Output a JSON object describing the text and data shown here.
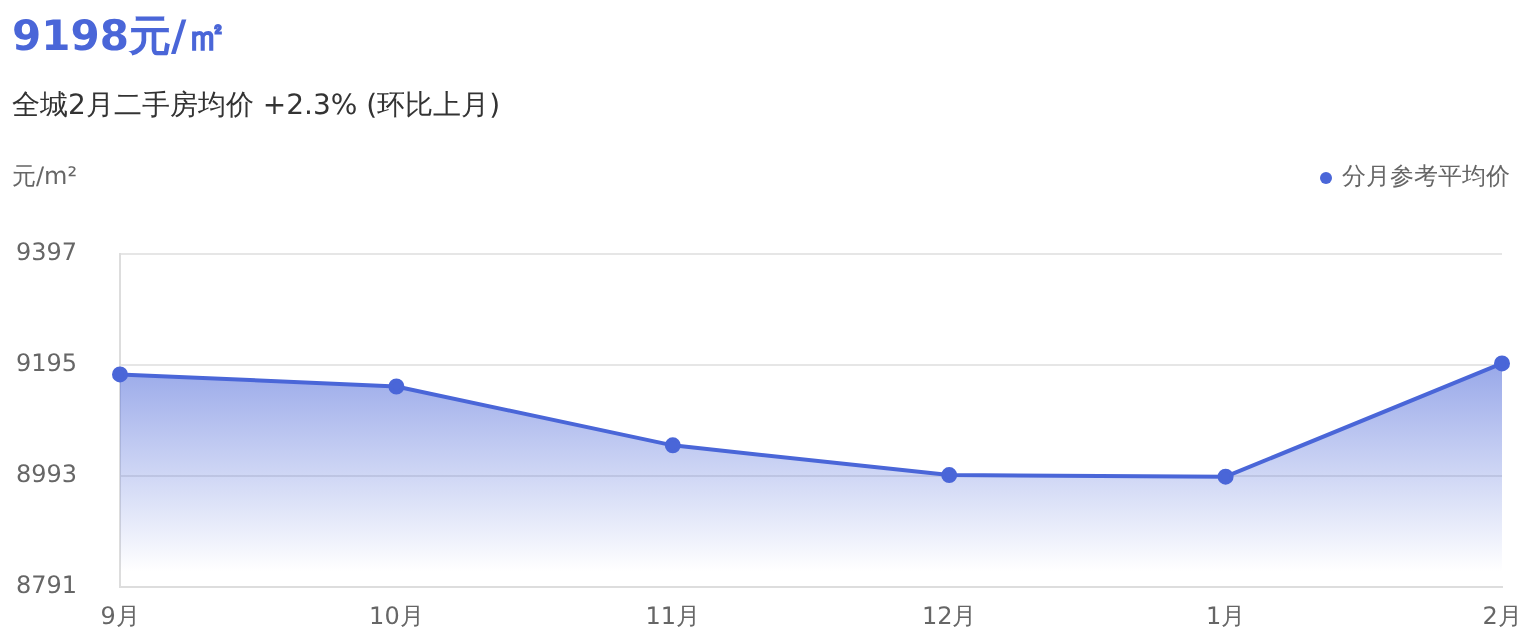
{
  "chart_data": {
    "type": "area",
    "title": "9198元/㎡",
    "subtitle": "全城2月二手房均价 +2.3% (环比上月)",
    "ylabel": "元/m²",
    "categories": [
      "9月",
      "10月",
      "11月",
      "12月",
      "1月",
      "2月"
    ],
    "series": [
      {
        "name": "分月参考平均价",
        "color": "#4a66d8",
        "values": [
          9178,
          9156,
          9049,
          8995,
          8992,
          9198
        ]
      }
    ],
    "ylim": [
      8791,
      9397
    ],
    "yticks": [
      8791,
      8993,
      9195,
      9397
    ],
    "grid": "y",
    "legend": "top right",
    "marker": "circle"
  }
}
